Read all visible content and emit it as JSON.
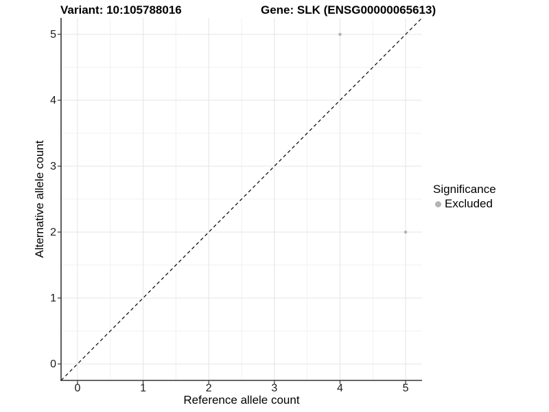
{
  "header": {
    "variant_title": "Variant: 10:105788016",
    "gene_title": "Gene: SLK (ENSG00000065613)"
  },
  "axes": {
    "x_label": "Reference allele count",
    "y_label": "Alternative allele count"
  },
  "legend": {
    "title": "Significance",
    "position": "right",
    "items": [
      {
        "label": "Excluded",
        "color": "#b4b4b4",
        "marker": "circle-icon"
      }
    ]
  },
  "chart_data": {
    "type": "scatter",
    "titles": [
      "Variant: 10:105788016",
      "Gene: SLK (ENSG00000065613)"
    ],
    "xlabel": "Reference allele count",
    "ylabel": "Alternative allele count",
    "xlim": [
      -0.25,
      5.25
    ],
    "ylim": [
      -0.25,
      5.25
    ],
    "x_ticks": [
      0,
      1,
      2,
      3,
      4,
      5
    ],
    "y_ticks": [
      0,
      1,
      2,
      3,
      4,
      5
    ],
    "x_minor": [
      0.5,
      1.5,
      2.5,
      3.5,
      4.5
    ],
    "y_minor": [
      0.5,
      1.5,
      2.5,
      3.5,
      4.5
    ],
    "grid": "major+minor",
    "legend_position": "right",
    "series": [
      {
        "name": "Excluded",
        "color": "#b4b4b4",
        "marker_radius": 2.3,
        "points": [
          [
            4,
            5
          ],
          [
            5,
            2
          ]
        ]
      }
    ],
    "reference_line": {
      "kind": "identity",
      "slope": 1,
      "intercept": 0,
      "style": "dashed",
      "color": "#000000"
    },
    "colors": {
      "background": "#ffffff",
      "major_grid": "#e4e4e4",
      "minor_grid": "#f1f1f1",
      "axis_line": "#333333",
      "tick_mark": "#333333",
      "point": "#b4b4b4"
    }
  }
}
